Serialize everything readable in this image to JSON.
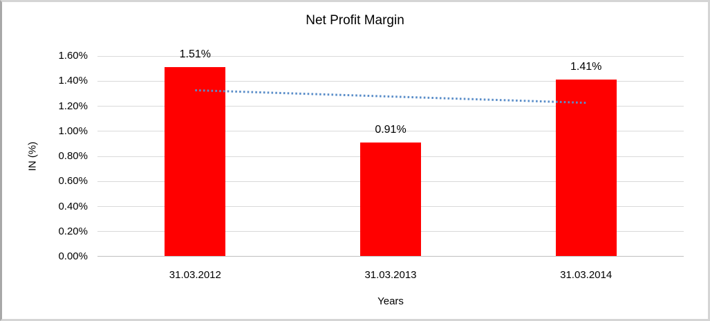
{
  "window": {
    "background": "#ffffff",
    "border_color": "#d5d5d5"
  },
  "chart_data": {
    "type": "bar",
    "title": "Net Profit Margin",
    "xlabel": "Years",
    "ylabel": "IN (%)",
    "categories": [
      "31.03.2012",
      "31.03.2013",
      "31.03.2014"
    ],
    "values": [
      1.51,
      0.91,
      1.41
    ],
    "data_labels": [
      "1.51%",
      "0.91%",
      "1.41%"
    ],
    "ylim": [
      0,
      1.6
    ],
    "ytick_step": 0.2,
    "yticks": [
      "0.00%",
      "0.20%",
      "0.40%",
      "0.60%",
      "0.80%",
      "1.00%",
      "1.20%",
      "1.40%",
      "1.60%"
    ],
    "grid": true,
    "legend": false,
    "bar_color": "#ff0000",
    "gridline_color": "#d9d9d9",
    "axis_line_color": "#bfbfbf",
    "text_color": "#000000",
    "trendline": {
      "type": "linear",
      "style": "dotted",
      "color": "#5b8ec9",
      "start_value": 1.327,
      "end_value": 1.227
    }
  }
}
